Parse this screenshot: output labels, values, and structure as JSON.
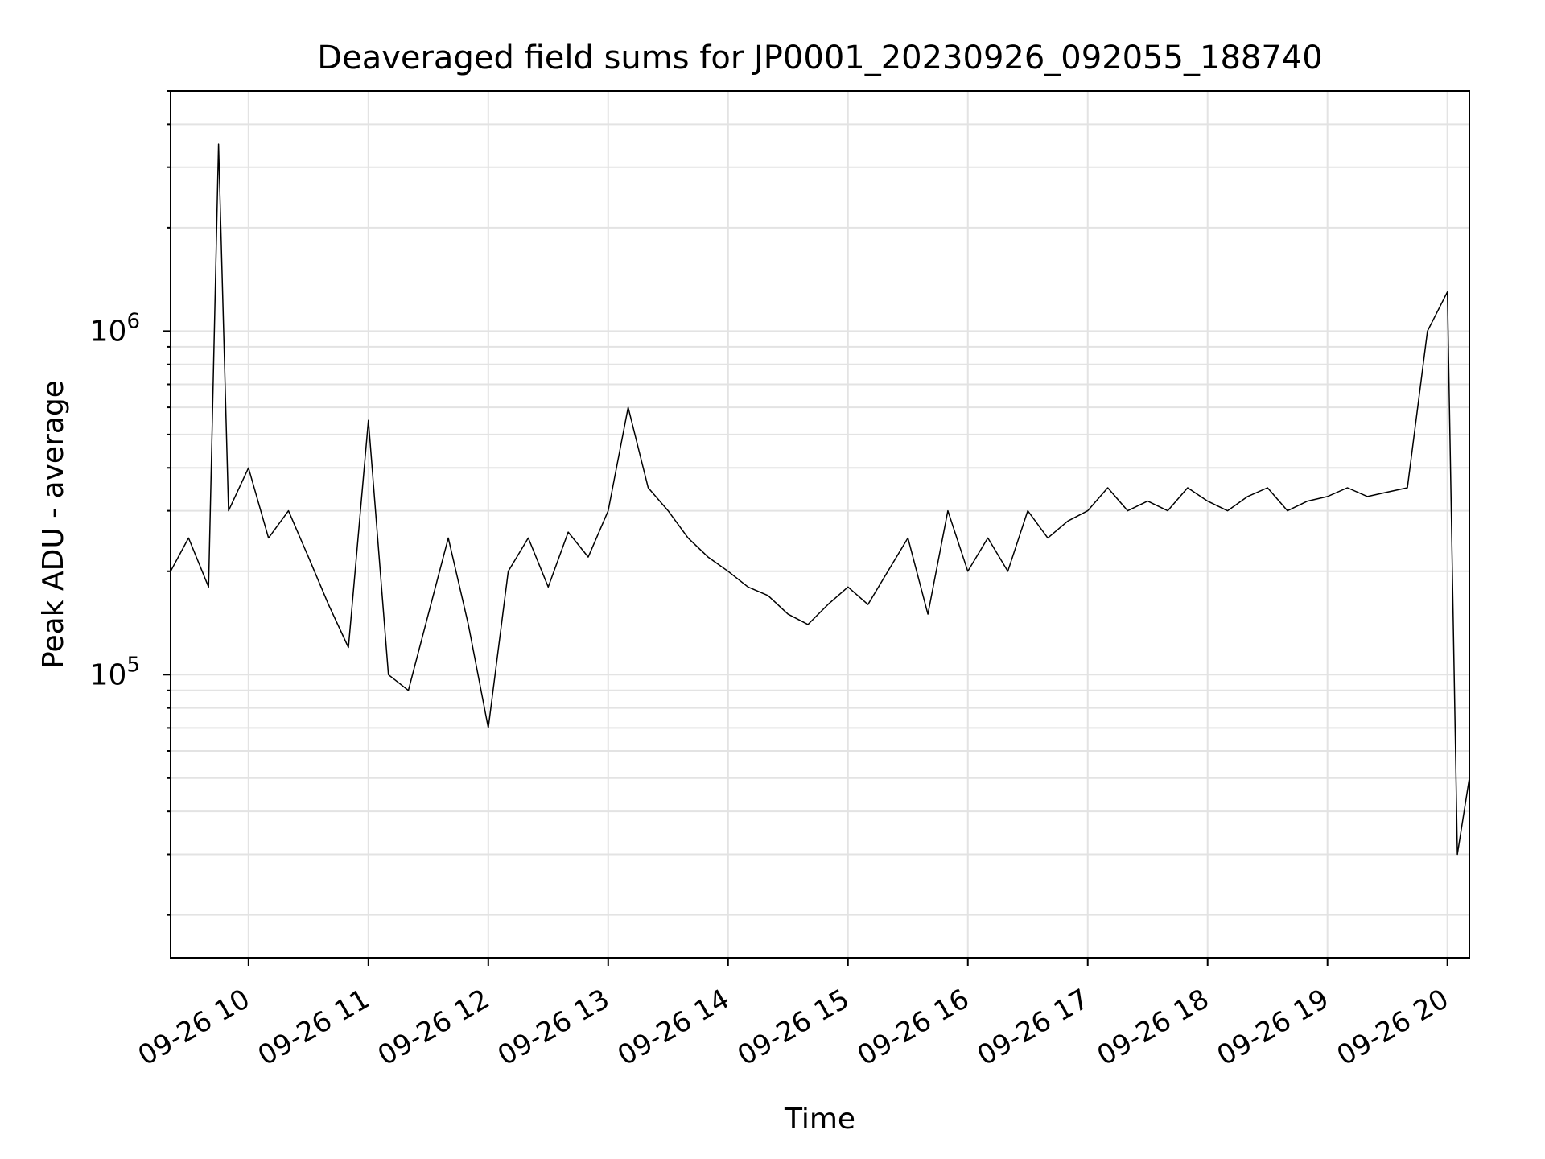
{
  "chart_data": {
    "type": "line",
    "title": "Deaveraged field sums for JP0001_20230926_092055_188740",
    "xlabel": "Time",
    "ylabel": "Peak ADU - average",
    "x_range": [
      "09-26 09:21",
      "09-26 20:11"
    ],
    "yscale": "log",
    "ylim": [
      15000,
      5000000
    ],
    "x_ticks": [
      "09-26 10",
      "09-26 11",
      "09-26 12",
      "09-26 13",
      "09-26 14",
      "09-26 15",
      "09-26 16",
      "09-26 17",
      "09-26 18",
      "09-26 19",
      "09-26 20"
    ],
    "y_tick_labels": [
      {
        "value": 100000,
        "base": "10",
        "exp": "5"
      },
      {
        "value": 1000000,
        "base": "10",
        "exp": "6"
      }
    ],
    "grid": true,
    "line_color": "#000000",
    "series": [
      {
        "values_note": "",
        "x": [
          "09-26 09:21",
          "09-26 09:30",
          "09-26 09:40",
          "09-26 09:45",
          "09-26 09:50",
          "09-26 10:00",
          "09-26 10:10",
          "09-26 10:20",
          "09-26 10:30",
          "09-26 10:40",
          "09-26 10:50",
          "09-26 11:00",
          "09-26 11:10",
          "09-26 11:20",
          "09-26 11:30",
          "09-26 11:40",
          "09-26 11:50",
          "09-26 12:00",
          "09-26 12:10",
          "09-26 12:20",
          "09-26 12:30",
          "09-26 12:40",
          "09-26 12:50",
          "09-26 13:00",
          "09-26 13:10",
          "09-26 13:20",
          "09-26 13:30",
          "09-26 13:40",
          "09-26 13:50",
          "09-26 14:00",
          "09-26 14:10",
          "09-26 14:20",
          "09-26 14:30",
          "09-26 14:40",
          "09-26 14:50",
          "09-26 15:00",
          "09-26 15:10",
          "09-26 15:20",
          "09-26 15:30",
          "09-26 15:40",
          "09-26 15:50",
          "09-26 16:00",
          "09-26 16:10",
          "09-26 16:20",
          "09-26 16:30",
          "09-26 16:40",
          "09-26 16:50",
          "09-26 17:00",
          "09-26 17:10",
          "09-26 17:20",
          "09-26 17:30",
          "09-26 17:40",
          "09-26 17:50",
          "09-26 18:00",
          "09-26 18:10",
          "09-26 18:20",
          "09-26 18:30",
          "09-26 18:40",
          "09-26 18:50",
          "09-26 19:00",
          "09-26 19:10",
          "09-26 19:20",
          "09-26 19:30",
          "09-26 19:40",
          "09-26 19:50",
          "09-26 20:00",
          "09-26 20:05",
          "09-26 20:11"
        ],
        "y": [
          200000,
          250000,
          180000,
          3500000,
          300000,
          400000,
          250000,
          300000,
          220000,
          160000,
          120000,
          550000,
          100000,
          90000,
          150000,
          250000,
          140000,
          70000,
          200000,
          250000,
          180000,
          260000,
          220000,
          300000,
          600000,
          350000,
          300000,
          250000,
          220000,
          200000,
          180000,
          170000,
          150000,
          140000,
          160000,
          180000,
          160000,
          200000,
          250000,
          150000,
          300000,
          200000,
          250000,
          200000,
          300000,
          250000,
          280000,
          300000,
          350000,
          300000,
          320000,
          300000,
          350000,
          320000,
          300000,
          330000,
          350000,
          300000,
          320000,
          330000,
          350000,
          330000,
          340000,
          350000,
          1000000,
          1300000,
          30000,
          50000
        ]
      }
    ]
  }
}
